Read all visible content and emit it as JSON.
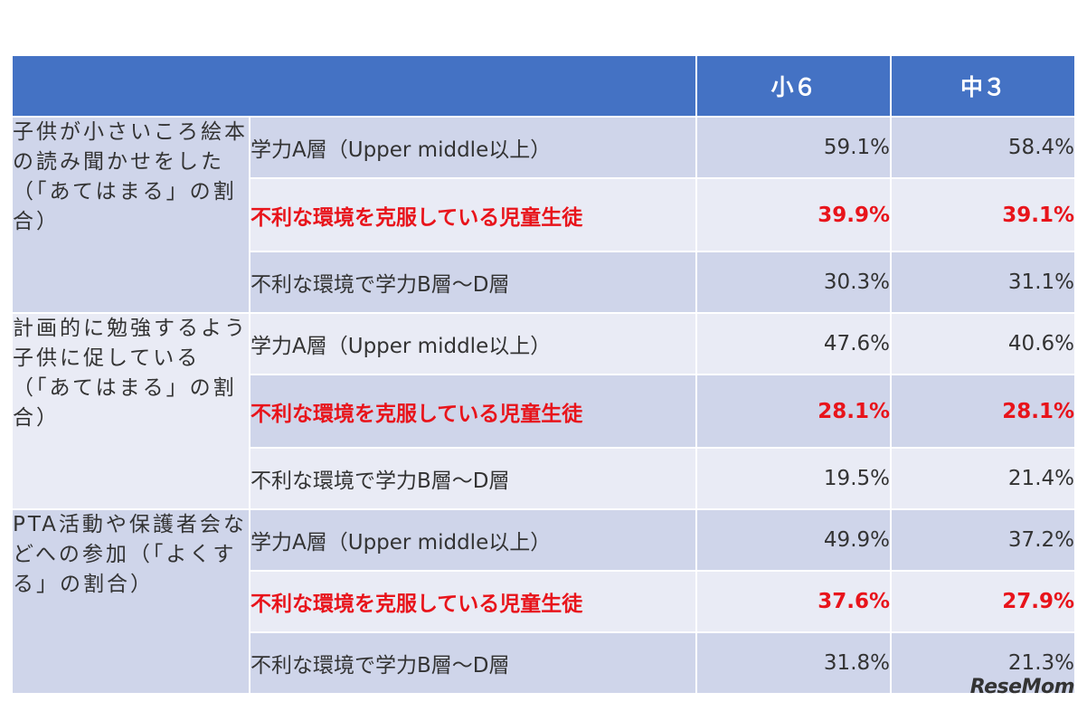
{
  "header": {
    "col1": "小６",
    "col2": "中３"
  },
  "groups": [
    {
      "category": "子供が小さいころ絵本の読み聞かせをした（「あてはまる」の割合）",
      "rows": [
        {
          "label": "学力A層（Upper middle以上）",
          "v1": "59.1%",
          "v2": "58.4%"
        },
        {
          "label": "不利な環境を克服している児童生徒",
          "v1": "39.9%",
          "v2": "39.1%"
        },
        {
          "label": "不利な環境で学力B層～D層",
          "v1": "30.3%",
          "v2": "31.1%"
        }
      ]
    },
    {
      "category": "計画的に勉強するよう子供に促している（「あてはまる」の割合）",
      "rows": [
        {
          "label": "学力A層（Upper middle以上）",
          "v1": "47.6%",
          "v2": "40.6%"
        },
        {
          "label": "不利な環境を克服している児童生徒",
          "v1": "28.1%",
          "v2": "28.1%"
        },
        {
          "label": "不利な環境で学力B層～D層",
          "v1": "19.5%",
          "v2": "21.4%"
        }
      ]
    },
    {
      "category": "PTA活動や保護者会などへの参加（「よくする」の割合）",
      "rows": [
        {
          "label": "学力A層（Upper middle以上）",
          "v1": "49.9%",
          "v2": "37.2%"
        },
        {
          "label": "不利な環境を克服している児童生徒",
          "v1": "37.6%",
          "v2": "27.9%"
        },
        {
          "label": "不利な環境で学力B層～D層",
          "v1": "31.8%",
          "v2": "21.3%"
        }
      ]
    }
  ],
  "highlight_color": "#e8141b",
  "header_color": "#4472c4",
  "watermark": "ReseMom"
}
